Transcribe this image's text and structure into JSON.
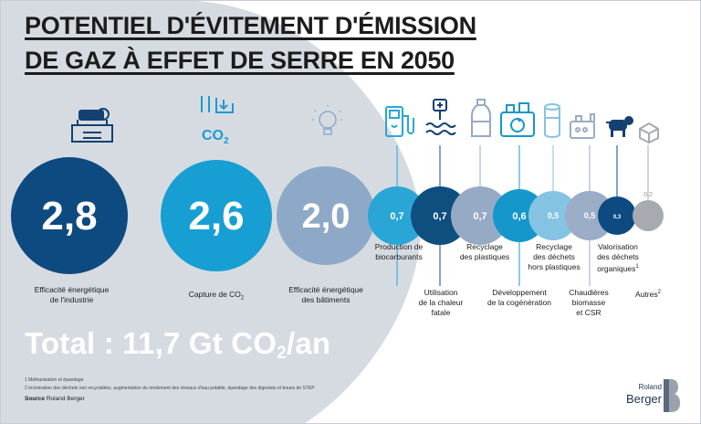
{
  "title": {
    "line1": "POTENTIEL D'ÉVITEMENT D'ÉMISSION",
    "line2": "DE GAZ À EFFET DE SERRE EN 2050"
  },
  "chart_data": {
    "type": "bubble",
    "unit": "Gt CO2/an",
    "categories": [
      "Efficacité énergétique de l'industrie",
      "Capture de CO2",
      "Efficacité énergétique des bâtiments",
      "Production de biocarburants",
      "Utilisation de la chaleur fatale",
      "Recyclage des plastiques",
      "Développement de la cogénération",
      "Recyclage des déchets hors plastiques",
      "Chaudières biomasse et CSR",
      "Valorisation des déchets organiques",
      "Autres"
    ],
    "values": [
      2.8,
      2.6,
      2.0,
      0.7,
      0.7,
      0.7,
      0.6,
      0.5,
      0.5,
      0.3,
      0.2
    ],
    "value_labels": [
      "2,8",
      "2,6",
      "2,0",
      "0,7",
      "0,7",
      "0,7",
      "0,6",
      "0,5",
      "0,5",
      "0,3",
      "0,2"
    ],
    "colors": [
      "#0d4a80",
      "#179fd3",
      "#8ea9c8",
      "#2aa6d6",
      "#0f4f80",
      "#97aac5",
      "#1597cc",
      "#84c3e1",
      "#9aacc6",
      "#0d4a80",
      "#a7aab0"
    ],
    "label_position": [
      "below",
      "below",
      "below",
      "below",
      "below",
      "above",
      "below",
      "above",
      "below",
      "above",
      "above"
    ]
  },
  "labels": {
    "c0": [
      "Efficacité énergétique",
      "de l'industrie"
    ],
    "c1": [
      "Capture de CO",
      "2"
    ],
    "c2": [
      "Efficacité énergétique",
      "des bâtiments"
    ],
    "c3": [
      "Production de",
      "biocarburants"
    ],
    "c4": [
      "Utilisation",
      "de la chaleur",
      "fatale"
    ],
    "c5": [
      "Recyclage",
      "des plastiques"
    ],
    "c6": [
      "Développement",
      "de la cogénération"
    ],
    "c7": [
      "Recyclage",
      "des déchets",
      "hors plastiques"
    ],
    "c8": [
      "Chaudières",
      "biomasse",
      "et CSR"
    ],
    "c9": [
      "Valorisation",
      "des déchets",
      "organiques",
      "1"
    ],
    "c10": [
      "Autres",
      "2"
    ]
  },
  "total": {
    "prefix": "Total : 11,7 Gt CO",
    "sub": "2",
    "suffix": "/an"
  },
  "icons": {
    "co2_label": "CO",
    "co2_sub": "2"
  },
  "footnotes": {
    "f1": "1  Méthanisation et épandage",
    "f2": "2  Incinération des déchets non recyclables, augmentation du rendement des réseaux d'eau potable, épandage des digestats et boues de STEP",
    "source_label": "Source",
    "source_value": "Roland Berger"
  },
  "logo": {
    "line1": "Roland",
    "line2": "Berger"
  },
  "colors": {
    "background_shape": "#d6dbe2",
    "title": "#1c1c1c",
    "icon_blue": "#1b9bd0",
    "icon_navy": "#14416f",
    "brand": "#1e3553"
  }
}
